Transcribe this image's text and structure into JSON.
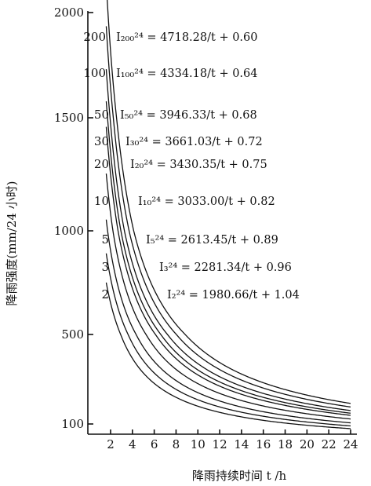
{
  "chart_data": {
    "type": "line",
    "xlabel": "降雨持续时间 t /h",
    "ylabel": "降雨强度(mm/24 小时)",
    "xlim": [
      0.5,
      24
    ],
    "ylim": [
      60,
      2000
    ],
    "x_ticks": [
      "2",
      "4",
      "6",
      "8",
      "10",
      "12",
      "14",
      "16",
      "18",
      "20",
      "22",
      "24"
    ],
    "y_ticks": [
      "100",
      "500",
      "1000",
      "1500",
      "2000"
    ],
    "x_tick_values": [
      2,
      4,
      6,
      8,
      10,
      12,
      14,
      16,
      18,
      20,
      22,
      24
    ],
    "y_tick_values": [
      100,
      500,
      1000,
      1500,
      2000
    ],
    "x_start": 1.6,
    "series": [
      {
        "name": "200",
        "a": 4718.28,
        "b": 0.6,
        "equation": "I₂₀₀²⁴ = 4718.28/t + 0.60"
      },
      {
        "name": "100",
        "a": 4334.18,
        "b": 0.64,
        "equation": "I₁₀₀²⁴ = 4334.18/t + 0.64"
      },
      {
        "name": "50",
        "a": 3946.33,
        "b": 0.68,
        "equation": "I₅₀²⁴ = 3946.33/t + 0.68"
      },
      {
        "name": "30",
        "a": 3661.03,
        "b": 0.72,
        "equation": "I₃₀²⁴ = 3661.03/t + 0.72"
      },
      {
        "name": "20",
        "a": 3430.35,
        "b": 0.75,
        "equation": "I₂₀²⁴ = 3430.35/t + 0.75"
      },
      {
        "name": "10",
        "a": 3033.0,
        "b": 0.82,
        "equation": "I₁₀²⁴ = 3033.00/t + 0.82"
      },
      {
        "name": "5",
        "a": 2613.45,
        "b": 0.89,
        "equation": "I₅²⁴ = 2613.45/t + 0.89"
      },
      {
        "name": "3",
        "a": 2281.34,
        "b": 0.96,
        "equation": "I₃²⁴ = 2281.34/t + 0.96"
      },
      {
        "name": "2",
        "a": 1980.66,
        "b": 1.04,
        "equation": "I₂²⁴ = 1980.66/t + 1.04"
      }
    ]
  }
}
